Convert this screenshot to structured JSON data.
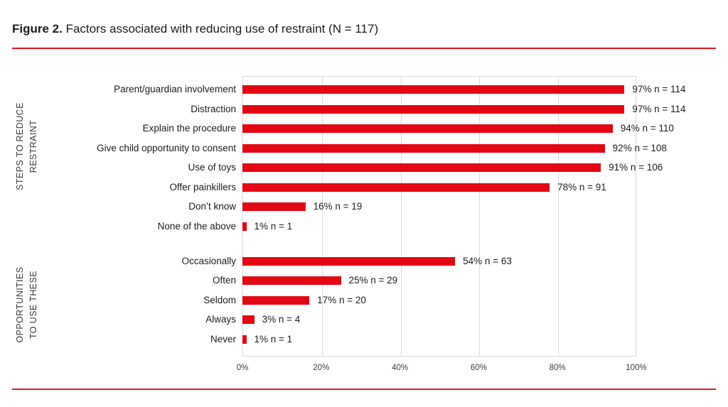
{
  "figure": {
    "label": "Figure 2.",
    "title": " Factors associated with reducing use of restraint (N = 117)"
  },
  "colors": {
    "bar": "#e30613",
    "rule": "#e8151c",
    "grid": "#dcdcdc"
  },
  "chart_data": {
    "type": "bar",
    "orientation": "horizontal",
    "title": "Figure 2. Factors associated with reducing use of restraint (N = 117)",
    "xlabel": "",
    "ylabel": "",
    "xlim": [
      0,
      100
    ],
    "grid": "vertical",
    "x_ticks": [
      {
        "label": "0%",
        "value": 0
      },
      {
        "label": "20%",
        "value": 20
      },
      {
        "label": "40%",
        "value": 40
      },
      {
        "label": "60%",
        "value": 60
      },
      {
        "label": "80%",
        "value": 80
      },
      {
        "label": "100%",
        "value": 100
      }
    ],
    "groups": [
      {
        "name": "STEPS TO REDUCE RESTRAINT",
        "label_lines": {
          "line1": "STEPS TO REDUCE",
          "line2": "RESTRAINT"
        },
        "bars": [
          {
            "category": "Parent/guardian involvement",
            "percent": 97,
            "n": 114,
            "value_label": "97% n = 114"
          },
          {
            "category": "Distraction",
            "percent": 97,
            "n": 114,
            "value_label": "97% n = 114"
          },
          {
            "category": "Explain the procedure",
            "percent": 94,
            "n": 110,
            "value_label": "94% n = 110"
          },
          {
            "category": "Give child opportunity to consent",
            "percent": 92,
            "n": 108,
            "value_label": "92% n = 108"
          },
          {
            "category": "Use of toys",
            "percent": 91,
            "n": 106,
            "value_label": "91% n = 106"
          },
          {
            "category": "Offer painkillers",
            "percent": 78,
            "n": 91,
            "value_label": "78% n = 91"
          },
          {
            "category": "Don’t know",
            "percent": 16,
            "n": 19,
            "value_label": "16% n = 19"
          },
          {
            "category": "None of the above",
            "percent": 1,
            "n": 1,
            "value_label": "1% n = 1"
          }
        ]
      },
      {
        "name": "OPPORTUNITIES TO USE THESE",
        "label_lines": {
          "line1": "OPPORTUNITIES",
          "line2": "TO USE THESE"
        },
        "bars": [
          {
            "category": "Occasionally",
            "percent": 54,
            "n": 63,
            "value_label": "54% n = 63"
          },
          {
            "category": "Often",
            "percent": 25,
            "n": 29,
            "value_label": "25% n = 29"
          },
          {
            "category": "Seldom",
            "percent": 17,
            "n": 20,
            "value_label": "17% n = 20"
          },
          {
            "category": "Always",
            "percent": 3,
            "n": 4,
            "value_label": "3% n = 4"
          },
          {
            "category": "Never",
            "percent": 1,
            "n": 1,
            "value_label": "1% n = 1"
          }
        ]
      }
    ]
  }
}
